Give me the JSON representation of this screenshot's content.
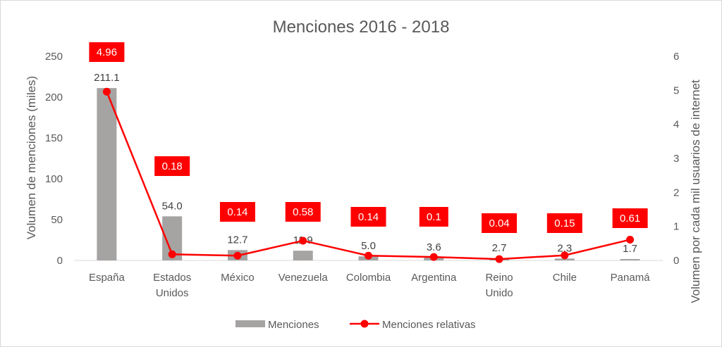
{
  "chart_data": {
    "type": "bar",
    "title": "Menciones 2016 - 2018",
    "categories": [
      [
        "España"
      ],
      [
        "Estados",
        "Unidos"
      ],
      [
        "México"
      ],
      [
        "Venezuela"
      ],
      [
        "Colombia"
      ],
      [
        "Argentina"
      ],
      [
        "Reino",
        "Unido"
      ],
      [
        "Chile"
      ],
      [
        "Panamá"
      ]
    ],
    "series": [
      {
        "name": "Menciones",
        "type": "bar",
        "axis": "left",
        "color": "#a6a3a3",
        "values": [
          211.1,
          54.0,
          12.7,
          11.9,
          5.0,
          3.6,
          2.7,
          2.3,
          1.7
        ],
        "labels": [
          "211.1",
          "54.0",
          "12.7",
          "11.9",
          "5.0",
          "3.6",
          "2.7",
          "2.3",
          "1.7"
        ]
      },
      {
        "name": "Menciones relativas",
        "type": "line",
        "axis": "right",
        "color": "#ff0000",
        "values": [
          4.96,
          0.18,
          0.14,
          0.58,
          0.14,
          0.1,
          0.04,
          0.15,
          0.61
        ],
        "labels": [
          "4.96",
          "0.18",
          "0.14",
          "0.58",
          "0.14",
          "0.1",
          "0.04",
          "0.15",
          "0.61"
        ]
      }
    ],
    "ylabel": "Volumen de menciones (miles)",
    "y2label": "Volumen por cada mil usuarios de internet",
    "ylim": [
      0,
      250
    ],
    "y2lim": [
      0,
      6
    ],
    "yticks": [
      "0",
      "50",
      "100",
      "150",
      "200",
      "250"
    ],
    "y2ticks": [
      "0",
      "1",
      "2",
      "3",
      "4",
      "5",
      "6"
    ],
    "grid": false,
    "legend": "bottom"
  }
}
